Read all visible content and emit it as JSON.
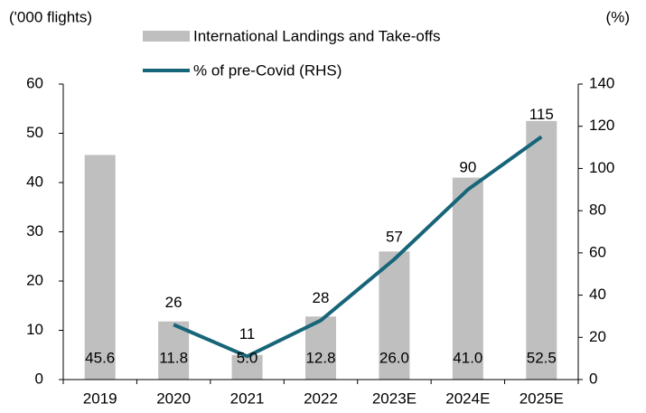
{
  "chart_data": {
    "type": "bar+line",
    "y_label": "('000 flights)",
    "y2_label": "(%)",
    "categories": [
      "2019",
      "2020",
      "2021",
      "2022",
      "2023E",
      "2024E",
      "2025E"
    ],
    "series": [
      {
        "name": "International Landings and Take-offs",
        "type": "bar",
        "color": "#bfbfbf",
        "values": [
          45.6,
          11.8,
          5.0,
          12.8,
          26.0,
          41.0,
          52.5
        ],
        "value_labels": [
          "45.6",
          "11.8",
          "5.0",
          "12.8",
          "26.0",
          "41.0",
          "52.5"
        ]
      },
      {
        "name": "% of pre-Covid (RHS)",
        "type": "line",
        "axis": "y2",
        "color": "#176578",
        "values": [
          null,
          26,
          11,
          28,
          57,
          90,
          115
        ]
      }
    ],
    "ylim": [
      0,
      60
    ],
    "yticks": [
      0,
      10,
      20,
      30,
      40,
      50,
      60
    ],
    "y2lim": [
      0,
      140
    ],
    "y2ticks": [
      0,
      20,
      40,
      60,
      80,
      100,
      120,
      140
    ]
  }
}
